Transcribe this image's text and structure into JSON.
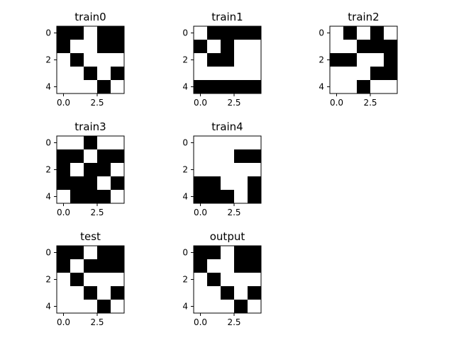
{
  "colors": {
    "filled": "#000000",
    "empty": "#ffffff",
    "frame": "#000000"
  },
  "chart_data": [
    {
      "type": "heatmap",
      "title": "train0",
      "grid": [
        [
          1,
          1,
          0,
          1,
          1
        ],
        [
          1,
          0,
          0,
          1,
          1
        ],
        [
          0,
          1,
          0,
          0,
          0
        ],
        [
          0,
          0,
          1,
          0,
          1
        ],
        [
          0,
          0,
          0,
          1,
          0
        ]
      ],
      "x_ticks": [
        "0.0",
        "2.5"
      ],
      "y_ticks": [
        "0",
        "2",
        "4"
      ]
    },
    {
      "type": "heatmap",
      "title": "train1",
      "grid": [
        [
          0,
          1,
          1,
          1,
          1
        ],
        [
          1,
          0,
          1,
          0,
          0
        ],
        [
          0,
          1,
          1,
          0,
          0
        ],
        [
          0,
          0,
          0,
          0,
          0
        ],
        [
          1,
          1,
          1,
          1,
          1
        ]
      ],
      "x_ticks": [
        "0.0",
        "2.5"
      ],
      "y_ticks": [
        "0",
        "2",
        "4"
      ]
    },
    {
      "type": "heatmap",
      "title": "train2",
      "grid": [
        [
          0,
          1,
          0,
          1,
          0
        ],
        [
          0,
          0,
          1,
          1,
          1
        ],
        [
          1,
          1,
          0,
          0,
          1
        ],
        [
          0,
          0,
          0,
          1,
          1
        ],
        [
          0,
          0,
          1,
          0,
          0
        ]
      ],
      "x_ticks": [
        "0.0",
        "2.5"
      ],
      "y_ticks": [
        "0",
        "2",
        "4"
      ]
    },
    {
      "type": "heatmap",
      "title": "train3",
      "grid": [
        [
          0,
          0,
          1,
          0,
          0
        ],
        [
          1,
          1,
          0,
          1,
          1
        ],
        [
          1,
          0,
          1,
          1,
          0
        ],
        [
          1,
          1,
          1,
          0,
          1
        ],
        [
          0,
          1,
          1,
          1,
          0
        ]
      ],
      "x_ticks": [
        "0.0",
        "2.5"
      ],
      "y_ticks": [
        "0",
        "2",
        "4"
      ]
    },
    {
      "type": "heatmap",
      "title": "train4",
      "grid": [
        [
          0,
          0,
          0,
          0,
          0
        ],
        [
          0,
          0,
          0,
          1,
          1
        ],
        [
          0,
          0,
          0,
          0,
          0
        ],
        [
          1,
          1,
          0,
          0,
          1
        ],
        [
          1,
          1,
          1,
          0,
          1
        ]
      ],
      "x_ticks": [
        "0.0",
        "2.5"
      ],
      "y_ticks": [
        "0",
        "2",
        "4"
      ]
    },
    {
      "type": "heatmap",
      "title": "test",
      "grid": [
        [
          1,
          1,
          0,
          1,
          1
        ],
        [
          1,
          0,
          1,
          1,
          1
        ],
        [
          0,
          1,
          0,
          0,
          0
        ],
        [
          0,
          0,
          1,
          0,
          1
        ],
        [
          0,
          0,
          0,
          1,
          0
        ]
      ],
      "x_ticks": [
        "0.0",
        "2.5"
      ],
      "y_ticks": [
        "0",
        "2",
        "4"
      ]
    },
    {
      "type": "heatmap",
      "title": "output",
      "grid": [
        [
          1,
          1,
          0,
          1,
          1
        ],
        [
          1,
          0,
          0,
          1,
          1
        ],
        [
          0,
          1,
          0,
          0,
          0
        ],
        [
          0,
          0,
          1,
          0,
          1
        ],
        [
          0,
          0,
          0,
          1,
          0
        ]
      ],
      "x_ticks": [
        "0.0",
        "2.5"
      ],
      "y_ticks": [
        "0",
        "2",
        "4"
      ]
    }
  ]
}
